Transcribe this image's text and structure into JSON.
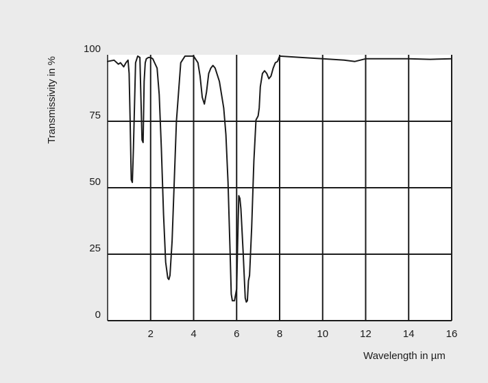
{
  "chart_data": {
    "type": "line",
    "title": "",
    "xlabel": "Wavelength in µm",
    "ylabel": "Transmissivity in %",
    "xlim": [
      0,
      16
    ],
    "ylim": [
      0,
      100
    ],
    "x_ticks": [
      2,
      4,
      6,
      8,
      10,
      12,
      14,
      16
    ],
    "x_tick_labels": [
      "2",
      "4",
      "6",
      "8",
      "10",
      "12",
      "14",
      "16"
    ],
    "y_ticks": [
      0,
      25,
      50,
      75,
      100
    ],
    "y_tick_labels": [
      "0",
      "25",
      "50",
      "75",
      "100"
    ],
    "grid": true,
    "colors": {
      "background": "#ebebeb",
      "plot_area": "#ffffff",
      "line": "#1a1a1a",
      "grid": "#1a1a1a"
    },
    "series": [
      {
        "x": [
          0,
          0.3,
          0.5,
          0.6,
          0.75,
          0.85,
          0.95,
          1.0,
          1.05,
          1.1,
          1.15,
          1.2,
          1.3,
          1.4,
          1.5,
          1.55,
          1.6,
          1.65,
          1.7,
          1.75,
          1.8,
          1.9,
          2.0,
          2.1,
          2.3,
          2.4,
          2.5,
          2.6,
          2.7,
          2.8,
          2.85,
          2.9,
          3.0,
          3.2,
          3.4,
          3.6,
          3.8,
          4.0,
          4.2,
          4.3,
          4.4,
          4.5,
          4.6,
          4.7,
          4.8,
          4.9,
          5.0,
          5.2,
          5.4,
          5.5,
          5.6,
          5.7,
          5.75,
          5.8,
          5.85,
          5.9,
          6.0,
          6.05,
          6.1,
          6.15,
          6.2,
          6.3,
          6.4,
          6.45,
          6.5,
          6.55,
          6.6,
          6.7,
          6.8,
          6.9,
          7.0,
          7.05,
          7.1,
          7.2,
          7.3,
          7.4,
          7.5,
          7.6,
          7.7,
          7.8,
          7.9,
          8.0,
          9.0,
          10.0,
          11.0,
          11.5,
          12.0,
          13.0,
          14.0,
          15.0,
          16.0
        ],
        "y": [
          97.5,
          98.0,
          96.5,
          97.0,
          95.5,
          97.0,
          98.0,
          93.0,
          75.0,
          53.0,
          52.0,
          65.0,
          97.0,
          99.5,
          99.0,
          84.0,
          68.0,
          67.0,
          90.0,
          97.0,
          98.5,
          99.0,
          99.0,
          98.5,
          95.0,
          85.0,
          65.0,
          40.0,
          22.0,
          16.0,
          15.5,
          17.0,
          30.0,
          75.0,
          97.0,
          99.5,
          99.5,
          99.5,
          97.0,
          92.0,
          84.0,
          81.5,
          86.0,
          93.0,
          95.0,
          96.0,
          95.0,
          90.0,
          80.0,
          70.0,
          52.0,
          25.0,
          10.0,
          7.5,
          7.5,
          7.5,
          12.0,
          30.0,
          47.0,
          46.0,
          42.0,
          26.0,
          8.5,
          7.0,
          7.5,
          15.0,
          17.0,
          35.0,
          60.0,
          75.5,
          77.0,
          80.0,
          88.0,
          93.0,
          94.0,
          93.0,
          91.0,
          92.0,
          95.0,
          97.0,
          97.5,
          99.5,
          99.0,
          98.5,
          98.0,
          97.5,
          98.5,
          98.5,
          98.5,
          98.3,
          98.5
        ]
      }
    ]
  }
}
